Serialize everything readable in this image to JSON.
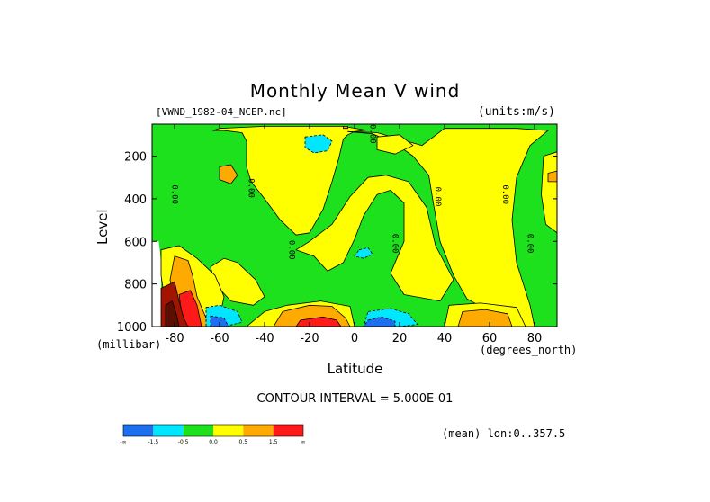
{
  "chart_data": {
    "type": "heatmap",
    "title": "Monthly Mean V wind",
    "subtitle_left": "[VWND_1982-04_NCEP.nc]",
    "subtitle_right": "(units:m/s)",
    "xlabel": "Latitude",
    "xunit": "(degrees_north)",
    "ylabel": "Level",
    "yunit": "(millibar)",
    "xlim": [
      -90,
      90
    ],
    "ylim": [
      1000,
      50
    ],
    "x_ticks": [
      -80,
      -60,
      -40,
      -20,
      0,
      20,
      40,
      60,
      80
    ],
    "x_tick_labels": [
      "-80",
      "-60",
      "-40",
      "-20",
      "0",
      "20",
      "40",
      "60",
      "80"
    ],
    "y_ticks": [
      200,
      400,
      600,
      800,
      1000
    ],
    "y_tick_labels": [
      "200",
      "400",
      "600",
      "800",
      "1000"
    ],
    "contour_interval_text": "CONTOUR INTERVAL = 5.000E-01",
    "mean_text": "(mean) lon:0..357.5",
    "zero_contour_label": "0.00",
    "zero_labels": [
      {
        "lat": -81,
        "lev": 380
      },
      {
        "lat": -47,
        "lev": 350
      },
      {
        "lat": -29,
        "lev": 640
      },
      {
        "lat": 7,
        "lev": 96
      },
      {
        "lat": 17,
        "lev": 610
      },
      {
        "lat": 36,
        "lev": 390
      },
      {
        "lat": 66,
        "lev": 380
      },
      {
        "lat": 77,
        "lev": 610
      }
    ],
    "legend": {
      "colors": [
        "#1e6ef0",
        "#00e6ff",
        "#1ee11e",
        "#ffff00",
        "#ffaa00",
        "#ff1a1a"
      ],
      "boundaries": [
        "-∞",
        "-1.5",
        "-0.5",
        "0.0",
        "0.5",
        "1.5",
        "∞"
      ]
    },
    "colors": {
      "neg_strong": "#1e6ef0",
      "neg_weak": "#00e6ff",
      "neg": "#1ee11e",
      "pos": "#ffff00",
      "pos_med": "#ffaa00",
      "pos_strong": "#ff1a1a",
      "pos_extreme": "#a01400",
      "pos_max": "#5a0f00"
    },
    "regions": [
      {
        "level": "pos",
        "pts": [
          [
            -63,
            80
          ],
          [
            -58,
            80
          ],
          [
            -50,
            90
          ],
          [
            -48,
            130
          ],
          [
            -48,
            250
          ],
          [
            -46,
            320
          ],
          [
            -40,
            400
          ],
          [
            -33,
            500
          ],
          [
            -26,
            570
          ],
          [
            -20,
            560
          ],
          [
            -14,
            450
          ],
          [
            -10,
            320
          ],
          [
            -7,
            210
          ],
          [
            -5,
            120
          ],
          [
            -3,
            100
          ],
          [
            0,
            85
          ],
          [
            5,
            78
          ],
          [
            -5,
            60
          ],
          [
            -40,
            60
          ],
          [
            -60,
            70
          ]
        ]
      },
      {
        "level": "pos",
        "pts": [
          [
            -3,
            85
          ],
          [
            8,
            95
          ],
          [
            18,
            140
          ],
          [
            26,
            200
          ],
          [
            33,
            290
          ],
          [
            35,
            420
          ],
          [
            38,
            600
          ],
          [
            44,
            760
          ],
          [
            50,
            870
          ],
          [
            62,
            940
          ],
          [
            66,
            1000
          ],
          [
            80,
            1000
          ],
          [
            78,
            900
          ],
          [
            72,
            700
          ],
          [
            70,
            500
          ],
          [
            72,
            300
          ],
          [
            78,
            150
          ],
          [
            86,
            80
          ],
          [
            72,
            70
          ],
          [
            40,
            70
          ],
          [
            30,
            150
          ],
          [
            20,
            120
          ],
          [
            10,
            90
          ]
        ]
      },
      {
        "level": "pos",
        "pts": [
          [
            -26,
            640
          ],
          [
            -18,
            670
          ],
          [
            -12,
            740
          ],
          [
            -5,
            700
          ],
          [
            0,
            590
          ],
          [
            4,
            480
          ],
          [
            10,
            380
          ],
          [
            16,
            360
          ],
          [
            22,
            420
          ],
          [
            22,
            600
          ],
          [
            16,
            750
          ],
          [
            22,
            850
          ],
          [
            38,
            880
          ],
          [
            44,
            780
          ],
          [
            36,
            620
          ],
          [
            32,
            440
          ],
          [
            24,
            320
          ],
          [
            14,
            290
          ],
          [
            6,
            300
          ],
          [
            -2,
            390
          ],
          [
            -10,
            520
          ],
          [
            -20,
            600
          ]
        ]
      },
      {
        "level": "pos",
        "pts": [
          [
            -52,
            700
          ],
          [
            -44,
            780
          ],
          [
            -40,
            860
          ],
          [
            -45,
            900
          ],
          [
            -55,
            880
          ],
          [
            -62,
            800
          ],
          [
            -64,
            720
          ],
          [
            -58,
            680
          ]
        ]
      },
      {
        "level": "pos",
        "pts": [
          [
            -40,
            930
          ],
          [
            -30,
            900
          ],
          [
            -15,
            880
          ],
          [
            -2,
            905
          ],
          [
            0,
            1000
          ],
          [
            -48,
            1000
          ]
        ]
      },
      {
        "level": "pos",
        "pts": [
          [
            42,
            900
          ],
          [
            56,
            890
          ],
          [
            72,
            910
          ],
          [
            76,
            1000
          ],
          [
            40,
            1000
          ]
        ]
      },
      {
        "level": "pos",
        "pts": [
          [
            -86,
            640
          ],
          [
            -78,
            620
          ],
          [
            -70,
            680
          ],
          [
            -62,
            760
          ],
          [
            -58,
            860
          ],
          [
            -60,
            960
          ],
          [
            -66,
            1000
          ],
          [
            -80,
            1000
          ],
          [
            -84,
            900
          ],
          [
            -86,
            760
          ]
        ]
      },
      {
        "level": "pos",
        "pts": [
          [
            84,
            200
          ],
          [
            90,
            180
          ],
          [
            90,
            560
          ],
          [
            85,
            520
          ],
          [
            83,
            380
          ]
        ]
      },
      {
        "level": "pos_med",
        "pts": [
          [
            -60,
            250
          ],
          [
            -55,
            240
          ],
          [
            -52,
            290
          ],
          [
            -55,
            330
          ],
          [
            -60,
            310
          ]
        ]
      },
      {
        "level": "pos_med",
        "pts": [
          [
            -80,
            670
          ],
          [
            -74,
            690
          ],
          [
            -72,
            760
          ],
          [
            -70,
            860
          ],
          [
            -66,
            960
          ],
          [
            -62,
            1000
          ],
          [
            -76,
            1000
          ],
          [
            -80,
            900
          ],
          [
            -82,
            780
          ]
        ]
      },
      {
        "level": "pos_med",
        "pts": [
          [
            -32,
            930
          ],
          [
            -20,
            900
          ],
          [
            -10,
            905
          ],
          [
            -4,
            960
          ],
          [
            -2,
            1000
          ],
          [
            -36,
            1000
          ]
        ]
      },
      {
        "level": "pos_med",
        "pts": [
          [
            48,
            930
          ],
          [
            58,
            920
          ],
          [
            68,
            940
          ],
          [
            70,
            1000
          ],
          [
            46,
            1000
          ]
        ]
      },
      {
        "level": "pos_med",
        "pts": [
          [
            86,
            280
          ],
          [
            90,
            270
          ],
          [
            90,
            320
          ],
          [
            86,
            320
          ]
        ]
      },
      {
        "level": "pos_strong",
        "pts": [
          [
            -78,
            850
          ],
          [
            -73,
            830
          ],
          [
            -70,
            900
          ],
          [
            -68,
            1000
          ],
          [
            -76,
            1000
          ]
        ]
      },
      {
        "level": "pos_strong",
        "pts": [
          [
            -24,
            970
          ],
          [
            -14,
            955
          ],
          [
            -8,
            970
          ],
          [
            -6,
            1000
          ],
          [
            -26,
            1000
          ]
        ]
      },
      {
        "level": "pos_extreme",
        "pts": [
          [
            -86,
            820
          ],
          [
            -80,
            790
          ],
          [
            -78,
            880
          ],
          [
            -76,
            960
          ],
          [
            -74,
            1000
          ],
          [
            -86,
            1000
          ]
        ]
      },
      {
        "level": "pos_max",
        "pts": [
          [
            -84,
            900
          ],
          [
            -81,
            880
          ],
          [
            -79,
            950
          ],
          [
            -78,
            1000
          ],
          [
            -84,
            1000
          ]
        ]
      },
      {
        "level": "neg_weak",
        "pts": [
          [
            -22,
            110
          ],
          [
            -14,
            100
          ],
          [
            -10,
            130
          ],
          [
            -12,
            175
          ],
          [
            -18,
            185
          ],
          [
            -22,
            160
          ]
        ]
      },
      {
        "level": "neg_weak",
        "pts": [
          [
            2,
            640
          ],
          [
            6,
            630
          ],
          [
            8,
            660
          ],
          [
            4,
            680
          ],
          [
            0,
            670
          ]
        ]
      },
      {
        "level": "neg_weak",
        "pts": [
          [
            -66,
            910
          ],
          [
            -60,
            900
          ],
          [
            -52,
            930
          ],
          [
            -50,
            980
          ],
          [
            -58,
            1000
          ],
          [
            -66,
            1000
          ]
        ]
      },
      {
        "level": "neg_weak",
        "pts": [
          [
            6,
            930
          ],
          [
            16,
            915
          ],
          [
            24,
            940
          ],
          [
            28,
            990
          ],
          [
            20,
            1000
          ],
          [
            4,
            1000
          ]
        ]
      },
      {
        "level": "neg_strong",
        "pts": [
          [
            -64,
            950
          ],
          [
            -58,
            960
          ],
          [
            -56,
            1000
          ],
          [
            -64,
            1000
          ]
        ]
      },
      {
        "level": "neg_strong",
        "pts": [
          [
            6,
            970
          ],
          [
            12,
            955
          ],
          [
            18,
            975
          ],
          [
            18,
            1000
          ],
          [
            4,
            1000
          ]
        ]
      },
      {
        "level": "pos",
        "pts": [
          [
            10,
            110
          ],
          [
            20,
            100
          ],
          [
            26,
            150
          ],
          [
            18,
            190
          ],
          [
            10,
            170
          ]
        ]
      },
      {
        "level": "pos_med",
        "pts": [
          [
            -5,
            60
          ],
          [
            -3,
            60
          ],
          [
            -3,
            70
          ],
          [
            -5,
            70
          ]
        ]
      }
    ]
  },
  "plot_frame_color": "#000000",
  "background_color": "#1ee11e",
  "missing_color": "#ffffff"
}
